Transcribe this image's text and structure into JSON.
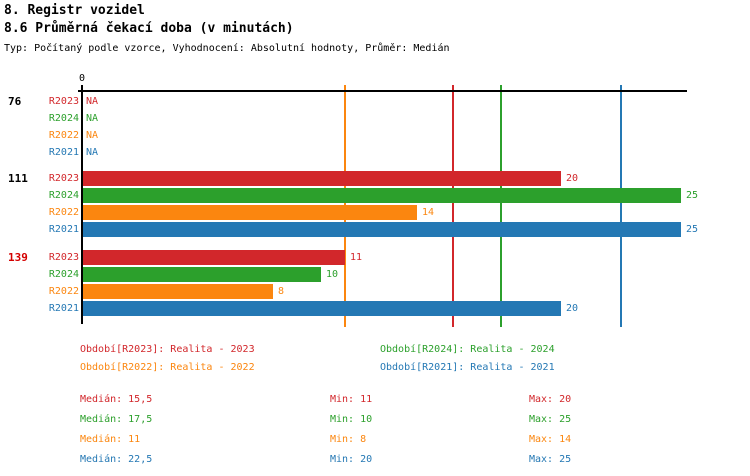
{
  "header": {
    "title": "8. Registr vozidel",
    "subtitle": "8.6 Průměrná čekací doba (v minutách)",
    "meta": "Typ: Počítaný podle vzorce, Vyhodnocení: Absolutní hodnoty, Průměr: Medián"
  },
  "colors": {
    "red": "#d2272b",
    "green": "#2ca02c",
    "orange": "#fb860f",
    "blue": "#2478b4",
    "axis": "#000000",
    "alert_group_label": "#d40000"
  },
  "chart_data": {
    "type": "bar",
    "orientation": "horizontal",
    "title": "8.6 Průměrná čekací doba (v minutách)",
    "x_origin_label": "0",
    "xlim": [
      0,
      25
    ],
    "na_text": "NA",
    "series_order": [
      "R2023",
      "R2024",
      "R2022",
      "R2021"
    ],
    "series_colors": {
      "R2023": "#d2272b",
      "R2024": "#2ca02c",
      "R2022": "#fb860f",
      "R2021": "#2478b4"
    },
    "groups": [
      {
        "label": "76",
        "label_color": "#000000",
        "values": {
          "R2023": "NA",
          "R2024": "NA",
          "R2022": "NA",
          "R2021": "NA"
        }
      },
      {
        "label": "111",
        "label_color": "#000000",
        "values": {
          "R2023": 20,
          "R2024": 25,
          "R2022": 14,
          "R2021": 25
        }
      },
      {
        "label": "139",
        "label_color": "#d40000",
        "values": {
          "R2023": 11,
          "R2024": 10,
          "R2022": 8,
          "R2021": 20
        }
      }
    ],
    "median_lines": {
      "R2023": 15.5,
      "R2024": 17.5,
      "R2022": 11,
      "R2021": 22.5
    },
    "stats": [
      {
        "series": "R2023",
        "median": 15.5,
        "min": 11,
        "max": 20
      },
      {
        "series": "R2024",
        "median": 17.5,
        "min": 10,
        "max": 25
      },
      {
        "series": "R2022",
        "median": 11,
        "min": 8,
        "max": 14
      },
      {
        "series": "R2021",
        "median": 22.5,
        "min": 20,
        "max": 25
      }
    ]
  },
  "legend": {
    "left": [
      {
        "series": "R2023",
        "text": "Období[R2023]: Realita - 2023"
      },
      {
        "series": "R2022",
        "text": "Období[R2022]: Realita - 2022"
      }
    ],
    "right": [
      {
        "series": "R2024",
        "text": "Období[R2024]: Realita - 2024"
      },
      {
        "series": "R2021",
        "text": "Období[R2021]: Realita - 2021"
      }
    ]
  },
  "stats_table": {
    "rows": [
      {
        "series": "R2023",
        "median": "Medián: 15,5",
        "min": "Min: 11",
        "max": "Max: 20"
      },
      {
        "series": "R2024",
        "median": "Medián: 17,5",
        "min": "Min: 10",
        "max": "Max: 25"
      },
      {
        "series": "R2022",
        "median": "Medián: 11",
        "min": "Min: 8",
        "max": "Max: 14"
      },
      {
        "series": "R2021",
        "median": "Medián: 22,5",
        "min": "Min: 20",
        "max": "Max: 25"
      }
    ]
  }
}
